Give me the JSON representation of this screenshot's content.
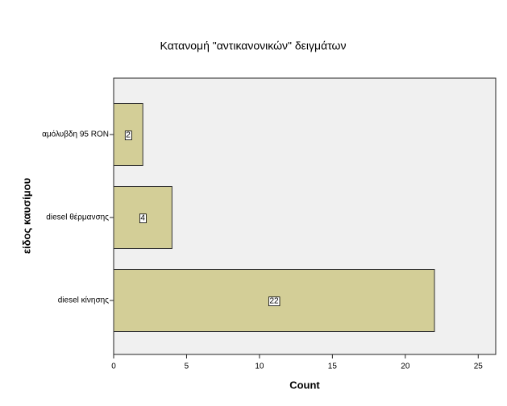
{
  "chart_data": {
    "type": "bar",
    "orientation": "horizontal",
    "title": "Κατανομή \"αντικανονικών\" δειγμάτων",
    "categories": [
      "αμόλυβδη 95 RON",
      "diesel θέρμανσης",
      "diesel κίνησης"
    ],
    "values": [
      2,
      4,
      22
    ],
    "color": "#d3ce97",
    "xlabel": "Count",
    "ylabel": "είδος καυσίμου",
    "xlim": [
      0,
      26.2
    ],
    "xticks": [
      0,
      5,
      10,
      15,
      20,
      25
    ],
    "grid": false,
    "value_labels_shown": true
  }
}
